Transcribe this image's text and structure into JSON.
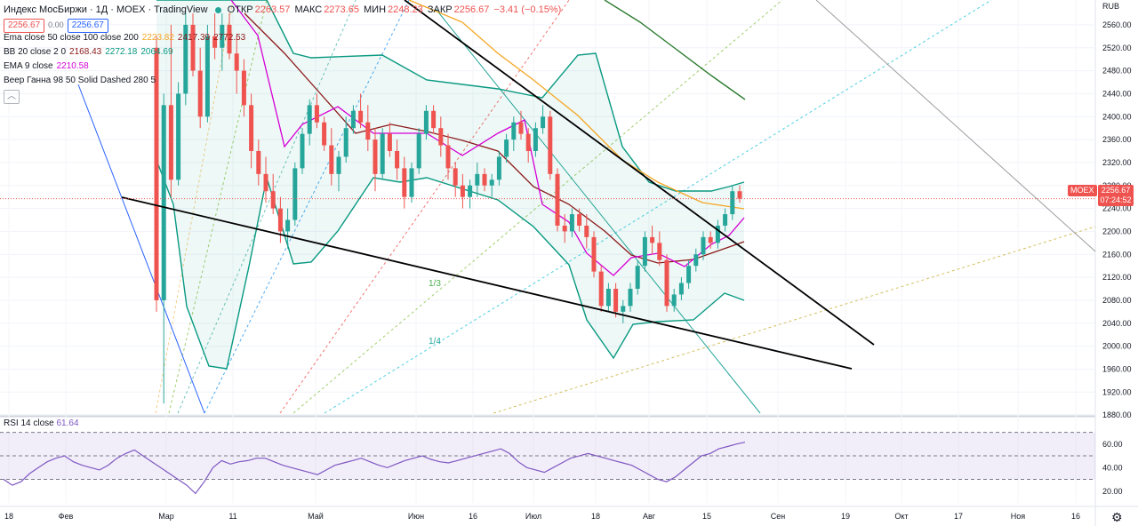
{
  "header": {
    "title": "Индекс МосБиржи · 1Д · MOEX · TradingView",
    "open_label": "ОТКР",
    "open": "2263.57",
    "high_label": "МАКС",
    "high": "2273.65",
    "low_label": "МИН",
    "low": "2248.23",
    "close_label": "ЗАКР",
    "close": "2256.67",
    "change": "−3.41 (−0.15%)",
    "box_left": "2256.67",
    "spread": "0.00",
    "box_right": "2256.67",
    "collapse_icon": "chevron-up-icon"
  },
  "indicators": {
    "ema": {
      "label": "Ema close 50 close 100 close 200",
      "v1": "2223.82",
      "v2": "2417.39",
      "v3": "2772.53"
    },
    "bb": {
      "label": "BB 20 close 2 0",
      "v1": "2168.43",
      "v2": "2272.18",
      "v3": "2064.69"
    },
    "ema9": {
      "label": "EMA 9 close",
      "v1": "2210.58"
    },
    "gann": {
      "label": "Веер Ганна 98 50 Solid Dashed 280 5"
    }
  },
  "rsi": {
    "label": "RSI 14 close",
    "value": "61.64"
  },
  "price_axis": {
    "currency": "RUB",
    "symbol": "MOEX",
    "last": "2256.67",
    "countdown": "07:24:52"
  },
  "annotations": {
    "gann_1_3": "1/3",
    "gann_1_4": "1/4"
  },
  "colors": {
    "up": "#26a69a",
    "down": "#ef5350",
    "bb": "#089981",
    "ema50": "#f5a623",
    "ema100": "#8b1a1a",
    "ema9": "#d500d5",
    "rsi": "#7e57c2"
  },
  "chart_data": [
    {
      "type": "candlestick",
      "x_axis_labels": [
        "18",
        "Фев",
        "Мар",
        "11",
        "Май",
        "Июн",
        "16",
        "Июл",
        "18",
        "Авг",
        "15",
        "Сен",
        "19",
        "Окт",
        "17",
        "Ноя",
        "16"
      ],
      "ylim": [
        1860,
        2580
      ],
      "y_ticks": [
        1880,
        1920,
        1960,
        2000,
        2040,
        2080,
        2120,
        2160,
        2200,
        2240,
        2280,
        2320,
        2360,
        2400,
        2440,
        2480,
        2520,
        2560
      ],
      "candles": [
        [
          2520,
          2540,
          2060,
          2080
        ],
        [
          2080,
          2440,
          1900,
          2420
        ],
        [
          2420,
          2560,
          2260,
          2290
        ],
        [
          2290,
          2460,
          2280,
          2440
        ],
        [
          2440,
          2580,
          2420,
          2560
        ],
        [
          2560,
          2580,
          2470,
          2480
        ],
        [
          2480,
          2520,
          2380,
          2400
        ],
        [
          2400,
          2560,
          2390,
          2540
        ],
        [
          2540,
          2580,
          2500,
          2520
        ],
        [
          2520,
          2580,
          2480,
          2560
        ],
        [
          2560,
          2580,
          2500,
          2510
        ],
        [
          2510,
          2540,
          2440,
          2480
        ],
        [
          2480,
          2500,
          2400,
          2420
        ],
        [
          2420,
          2440,
          2310,
          2340
        ],
        [
          2340,
          2360,
          2280,
          2300
        ],
        [
          2300,
          2330,
          2250,
          2270
        ],
        [
          2270,
          2300,
          2230,
          2240
        ],
        [
          2240,
          2260,
          2180,
          2200
        ],
        [
          2200,
          2240,
          2170,
          2220
        ],
        [
          2220,
          2320,
          2210,
          2310
        ],
        [
          2310,
          2380,
          2300,
          2370
        ],
        [
          2370,
          2430,
          2350,
          2420
        ],
        [
          2420,
          2440,
          2380,
          2390
        ],
        [
          2390,
          2400,
          2340,
          2350
        ],
        [
          2350,
          2380,
          2280,
          2300
        ],
        [
          2300,
          2340,
          2270,
          2330
        ],
        [
          2330,
          2400,
          2320,
          2380
        ],
        [
          2380,
          2420,
          2370,
          2410
        ],
        [
          2410,
          2440,
          2380,
          2390
        ],
        [
          2390,
          2420,
          2340,
          2360
        ],
        [
          2360,
          2380,
          2270,
          2300
        ],
        [
          2300,
          2380,
          2290,
          2370
        ],
        [
          2370,
          2390,
          2330,
          2340
        ],
        [
          2340,
          2360,
          2290,
          2310
        ],
        [
          2310,
          2330,
          2240,
          2260
        ],
        [
          2260,
          2320,
          2250,
          2310
        ],
        [
          2310,
          2380,
          2300,
          2370
        ],
        [
          2370,
          2420,
          2360,
          2410
        ],
        [
          2410,
          2420,
          2370,
          2380
        ],
        [
          2380,
          2400,
          2330,
          2350
        ],
        [
          2350,
          2370,
          2290,
          2310
        ],
        [
          2310,
          2320,
          2260,
          2280
        ],
        [
          2280,
          2300,
          2240,
          2260
        ],
        [
          2260,
          2290,
          2240,
          2280
        ],
        [
          2280,
          2320,
          2260,
          2300
        ],
        [
          2300,
          2310,
          2270,
          2280
        ],
        [
          2280,
          2300,
          2260,
          2290
        ],
        [
          2290,
          2340,
          2280,
          2330
        ],
        [
          2330,
          2370,
          2320,
          2360
        ],
        [
          2360,
          2400,
          2340,
          2390
        ],
        [
          2390,
          2410,
          2360,
          2370
        ],
        [
          2370,
          2380,
          2320,
          2340
        ],
        [
          2340,
          2390,
          2330,
          2380
        ],
        [
          2380,
          2420,
          2370,
          2400
        ],
        [
          2400,
          2410,
          2290,
          2300
        ],
        [
          2300,
          2310,
          2200,
          2210
        ],
        [
          2210,
          2230,
          2180,
          2200
        ],
        [
          2200,
          2240,
          2190,
          2230
        ],
        [
          2230,
          2240,
          2200,
          2210
        ],
        [
          2210,
          2230,
          2170,
          2190
        ],
        [
          2190,
          2200,
          2120,
          2130
        ],
        [
          2130,
          2140,
          2060,
          2070
        ],
        [
          2070,
          2110,
          2060,
          2100
        ],
        [
          2100,
          2110,
          2050,
          2060
        ],
        [
          2060,
          2080,
          2040,
          2070
        ],
        [
          2070,
          2110,
          2060,
          2100
        ],
        [
          2100,
          2150,
          2090,
          2140
        ],
        [
          2140,
          2200,
          2130,
          2190
        ],
        [
          2190,
          2210,
          2160,
          2180
        ],
        [
          2180,
          2200,
          2140,
          2150
        ],
        [
          2150,
          2160,
          2060,
          2070
        ],
        [
          2070,
          2100,
          2060,
          2090
        ],
        [
          2090,
          2120,
          2080,
          2110
        ],
        [
          2110,
          2150,
          2100,
          2140
        ],
        [
          2140,
          2170,
          2130,
          2160
        ],
        [
          2160,
          2200,
          2150,
          2190
        ],
        [
          2190,
          2200,
          2170,
          2180
        ],
        [
          2180,
          2220,
          2170,
          2210
        ],
        [
          2210,
          2240,
          2200,
          2230
        ],
        [
          2230,
          2280,
          2220,
          2270
        ],
        [
          2270,
          2280,
          2250,
          2257
        ]
      ]
    },
    {
      "type": "line",
      "name": "RSI 14 close",
      "ylim": [
        10,
        78
      ],
      "y_ticks": [
        20,
        40,
        60
      ],
      "bands": [
        30,
        50,
        70
      ],
      "values": [
        30,
        25,
        28,
        35,
        40,
        45,
        48,
        50,
        45,
        42,
        40,
        38,
        42,
        48,
        52,
        55,
        50,
        45,
        40,
        35,
        30,
        25,
        18,
        28,
        40,
        46,
        43,
        45,
        46,
        48,
        48,
        45,
        42,
        40,
        38,
        36,
        34,
        38,
        42,
        44,
        46,
        48,
        45,
        42,
        40,
        43,
        46,
        48,
        50,
        47,
        45,
        44,
        46,
        48,
        50,
        52,
        54,
        56,
        52,
        45,
        40,
        38,
        36,
        40,
        44,
        48,
        50,
        52,
        50,
        48,
        46,
        44,
        42,
        38,
        34,
        30,
        28,
        32,
        38,
        44,
        50,
        52,
        56,
        58,
        60,
        61.64
      ]
    }
  ]
}
